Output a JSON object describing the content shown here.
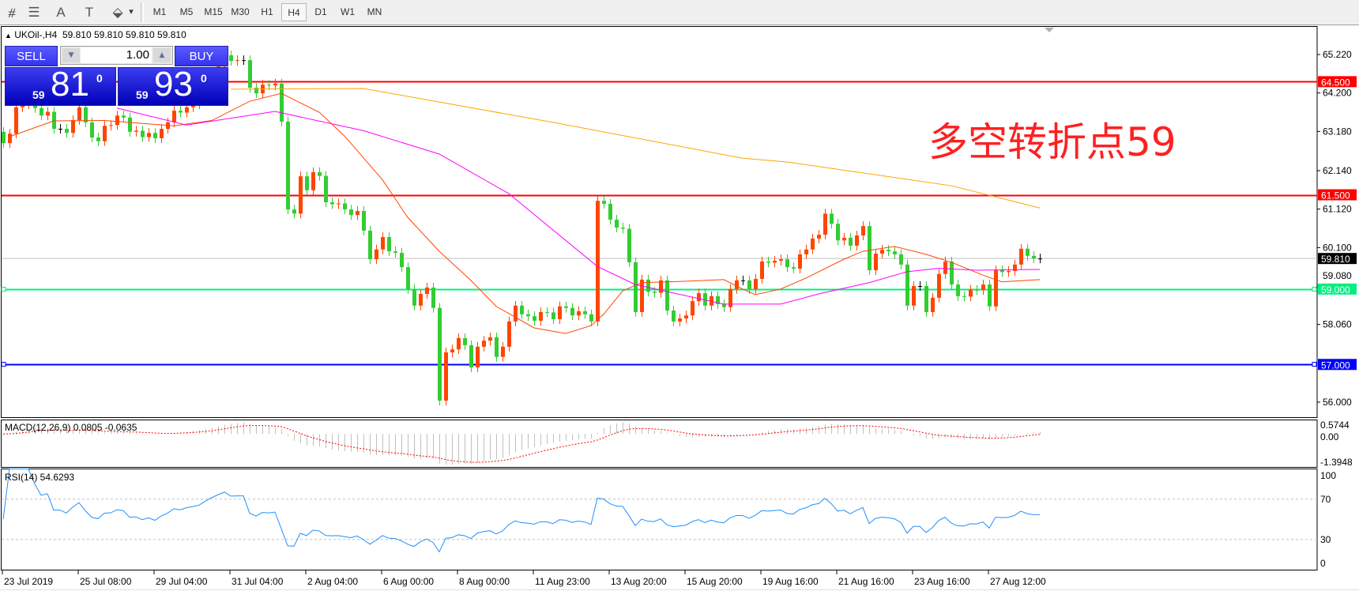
{
  "toolbar": {
    "tools": [
      {
        "icon": "fibonacci-expansion-icon",
        "glyph": "⧣"
      },
      {
        "icon": "fibonacci-fan-icon",
        "glyph": "☰"
      },
      {
        "icon": "text-icon",
        "glyph": "A"
      },
      {
        "icon": "text-label-icon",
        "glyph": "T"
      },
      {
        "icon": "arrows-icon",
        "glyph": "⬙"
      }
    ],
    "dropdown_glyph": "▾",
    "periods": [
      "M1",
      "M5",
      "M15",
      "M30",
      "H1",
      "H4",
      "D1",
      "W1",
      "MN"
    ],
    "active_period": "H4"
  },
  "chart_header": {
    "arrow": "▲",
    "text": "UKOil-,H4  59.810 59.810 59.810 59.810"
  },
  "one_click": {
    "sell_label": "SELL",
    "buy_label": "BUY",
    "volume": "1.00",
    "down_glyph": "▼",
    "up_glyph": "▲",
    "sell_price": {
      "small": "59",
      "big": "81",
      "pip": "0"
    },
    "buy_price": {
      "small": "59",
      "big": "93",
      "pip": "0"
    }
  },
  "annotation": "多空转折点59",
  "colors": {
    "bull": "#ff4500",
    "bear": "#32cd32",
    "ma_fast": "#ff4500",
    "ma_mid": "#ff00ff",
    "ma_slow": "#ffa500",
    "rsi": "#1e90ff",
    "macd_hist": "#c0c0c0",
    "macd_signal": "#ff0000"
  },
  "chart_data": {
    "type": "candlestick",
    "symbol": "UKOil-",
    "timeframe": "H4",
    "ylim": [
      55.78,
      65.94
    ],
    "price_ticks": [
      "65.220",
      "64.200",
      "63.180",
      "62.140",
      "61.120",
      "60.100",
      "59.080",
      "58.060",
      "56.000"
    ],
    "time_labels": [
      "23 Jul 2019",
      "25 Jul 08:00",
      "29 Jul 04:00",
      "31 Jul 04:00",
      "2 Aug 04:00",
      "6 Aug 00:00",
      "8 Aug 00:00",
      "11 Aug 23:00",
      "13 Aug 20:00",
      "15 Aug 20:00",
      "19 Aug 16:00",
      "21 Aug 16:00",
      "23 Aug 16:00",
      "27 Aug 12:00"
    ],
    "close": [
      62.87,
      63.12,
      63.82,
      63.9,
      64.0,
      63.8,
      63.6,
      63.7,
      63.25,
      63.25,
      63.14,
      63.48,
      63.82,
      63.42,
      63.02,
      62.92,
      63.33,
      63.35,
      63.6,
      63.55,
      63.17,
      63.2,
      63.03,
      63.14,
      63.0,
      63.25,
      63.42,
      63.73,
      63.68,
      63.82,
      63.9,
      64.0,
      64.3,
      64.6,
      64.9,
      65.2,
      65.05,
      65.07,
      65.07,
      64.34,
      64.19,
      64.42,
      64.4,
      64.45,
      63.44,
      61.11,
      61.0,
      61.99,
      61.62,
      62.1,
      62.0,
      61.3,
      61.25,
      61.27,
      61.11,
      60.96,
      61.07,
      60.55,
      59.79,
      60.05,
      60.38,
      60.0,
      59.96,
      59.58,
      59.0,
      58.56,
      58.87,
      59.04,
      58.5,
      56.04,
      57.32,
      57.4,
      57.7,
      57.51,
      56.92,
      57.47,
      57.63,
      57.72,
      57.2,
      57.47,
      58.14,
      58.56,
      58.33,
      58.28,
      58.16,
      58.39,
      58.38,
      58.2,
      58.54,
      58.5,
      58.3,
      58.41,
      58.33,
      58.14,
      61.34,
      61.26,
      60.84,
      60.63,
      60.6,
      59.71,
      58.39,
      59.25,
      58.93,
      58.9,
      59.23,
      58.43,
      58.14,
      58.22,
      58.3,
      58.68,
      58.89,
      58.56,
      58.81,
      58.6,
      58.52,
      59.0,
      59.23,
      59.23,
      59.0,
      59.27,
      59.73,
      59.7,
      59.75,
      59.79,
      59.58,
      59.54,
      59.92,
      60.05,
      60.34,
      60.44,
      61.0,
      60.73,
      60.29,
      60.36,
      60.15,
      60.42,
      60.67,
      59.5,
      59.94,
      60.04,
      60.0,
      59.92,
      59.65,
      58.56,
      59.08,
      59.08,
      58.39,
      58.77,
      59.4,
      59.73,
      59.12,
      58.81,
      58.8,
      58.98,
      58.97,
      59.12,
      58.54,
      59.5,
      59.45,
      59.48,
      59.65,
      60.07,
      59.88,
      59.81,
      59.81
    ],
    "moving_averages": [
      {
        "key": "ma_fast",
        "points": [
          [
            1,
            63.04
          ],
          [
            8,
            63.46
          ],
          [
            16,
            63.47
          ],
          [
            27,
            63.33
          ],
          [
            33,
            63.47
          ],
          [
            39,
            63.98
          ],
          [
            44,
            64.19
          ],
          [
            50,
            63.69
          ],
          [
            54,
            63.06
          ],
          [
            60,
            61.9
          ],
          [
            64,
            60.9
          ],
          [
            69,
            60.0
          ],
          [
            74,
            59.23
          ],
          [
            78,
            58.54
          ],
          [
            84,
            57.97
          ],
          [
            89,
            57.82
          ],
          [
            93,
            58.03
          ],
          [
            95,
            58.33
          ],
          [
            98,
            58.95
          ],
          [
            101,
            59.17
          ],
          [
            107,
            59.2
          ],
          [
            114,
            59.25
          ],
          [
            117,
            59.0
          ],
          [
            119,
            58.85
          ],
          [
            123,
            59.0
          ],
          [
            127,
            59.29
          ],
          [
            133,
            59.79
          ],
          [
            136,
            60.0
          ],
          [
            141,
            60.13
          ],
          [
            146,
            59.92
          ],
          [
            150,
            59.71
          ],
          [
            155,
            59.37
          ],
          [
            158,
            59.19
          ],
          [
            164,
            59.25
          ]
        ]
      },
      {
        "key": "ma_mid",
        "points": [
          [
            18,
            63.8
          ],
          [
            29,
            63.35
          ],
          [
            43,
            63.71
          ],
          [
            57,
            63.2
          ],
          [
            69,
            62.58
          ],
          [
            80,
            61.53
          ],
          [
            94,
            59.6
          ],
          [
            100,
            59.12
          ],
          [
            114,
            58.6
          ],
          [
            123,
            58.6
          ],
          [
            129,
            58.87
          ],
          [
            137,
            59.17
          ],
          [
            143,
            59.46
          ],
          [
            148,
            59.55
          ],
          [
            154,
            59.5
          ],
          [
            164,
            59.52
          ]
        ]
      },
      {
        "key": "ma_slow",
        "points": [
          [
            36,
            64.3
          ],
          [
            57,
            64.32
          ],
          [
            87,
            63.42
          ],
          [
            117,
            62.47
          ],
          [
            124,
            62.37
          ],
          [
            150,
            61.74
          ],
          [
            164,
            61.15
          ]
        ]
      }
    ],
    "horizontal_lines": [
      {
        "price": 64.5,
        "label": "64.500",
        "color": "#ff0000",
        "handles": false
      },
      {
        "price": 61.5,
        "label": "61.500",
        "color": "#ff0000",
        "handles": false
      },
      {
        "price": 59.0,
        "label": "59.000",
        "color": "#00f080",
        "handles": true
      },
      {
        "price": 57.0,
        "label": "57.000",
        "color": "#0000ff",
        "handles": true
      }
    ],
    "current_price": {
      "price": 59.81,
      "label": "59.810"
    },
    "macd": {
      "label": "MACD(12,26,9) 0.0805 -0.0635",
      "fast": 12,
      "slow": 26,
      "signal": 9,
      "ylim": [
        -1.3948,
        0.5744
      ],
      "ticks": [
        "0.5744",
        "0.00",
        "-1.3948"
      ]
    },
    "rsi": {
      "label": "RSI(14) 54.6293",
      "period": 14,
      "levels": [
        70,
        30
      ],
      "ticks": [
        "100",
        "70",
        "30",
        "0"
      ]
    }
  }
}
